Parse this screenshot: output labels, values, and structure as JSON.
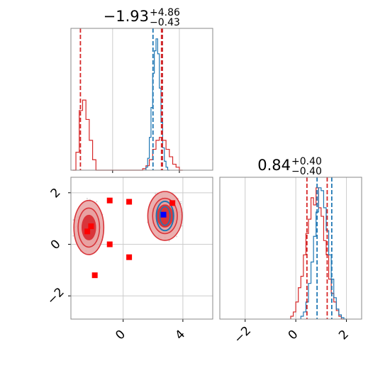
{
  "colors": {
    "red": "#d62728",
    "blue": "#1f77b4",
    "marker_red": "#ff0000",
    "marker_blue": "#0000ff",
    "grid": "#cccccc",
    "frame": "#888888",
    "contour_fill": "#e8a2a2",
    "contour_dark": "#d9353a"
  },
  "chart_data": [
    {
      "panel": "top-left",
      "type": "histogram",
      "title_value": "−1.93",
      "title_plus": "+4.86",
      "title_minus": "−0.43",
      "xlim": [
        -2.5,
        6.0
      ],
      "xticks": [
        0,
        4
      ],
      "show_tick_labels": false,
      "grid": true,
      "series": [
        {
          "color": "red",
          "bins": [
            [
              -2.4,
              -2.2,
              0.0
            ],
            [
              -2.2,
              -2.0,
              0.12
            ],
            [
              -2.0,
              -1.8,
              0.4
            ],
            [
              -1.8,
              -1.6,
              0.47
            ],
            [
              -1.6,
              -1.4,
              0.34
            ],
            [
              -1.4,
              -1.2,
              0.2
            ],
            [
              -1.2,
              -1.0,
              0.07
            ],
            [
              -1.0,
              -0.8,
              0.0
            ],
            [
              1.6,
              1.8,
              0.0
            ],
            [
              1.8,
              2.0,
              0.01
            ],
            [
              2.0,
              2.2,
              0.03
            ],
            [
              2.2,
              2.4,
              0.07
            ],
            [
              2.4,
              2.6,
              0.14
            ],
            [
              2.6,
              2.8,
              0.2
            ],
            [
              2.8,
              3.0,
              0.22
            ],
            [
              3.0,
              3.2,
              0.2
            ],
            [
              3.2,
              3.4,
              0.14
            ],
            [
              3.4,
              3.6,
              0.09
            ],
            [
              3.6,
              3.8,
              0.04
            ],
            [
              3.8,
              4.0,
              0.02
            ],
            [
              4.0,
              4.2,
              0.0
            ]
          ]
        },
        {
          "color": "blue",
          "bins": [
            [
              2.0,
              2.1,
              0.02
            ],
            [
              2.1,
              2.2,
              0.08
            ],
            [
              2.2,
              2.3,
              0.22
            ],
            [
              2.3,
              2.4,
              0.42
            ],
            [
              2.4,
              2.5,
              0.65
            ],
            [
              2.5,
              2.6,
              0.8
            ],
            [
              2.6,
              2.7,
              0.88
            ],
            [
              2.7,
              2.8,
              0.78
            ],
            [
              2.8,
              2.9,
              0.55
            ],
            [
              2.9,
              3.0,
              0.32
            ],
            [
              3.0,
              3.1,
              0.15
            ],
            [
              3.1,
              3.2,
              0.06
            ],
            [
              3.2,
              3.3,
              0.02
            ],
            [
              3.3,
              3.4,
              0.0
            ]
          ]
        }
      ],
      "vlines": [
        {
          "x": -1.93,
          "color": "red"
        },
        {
          "x": 2.42,
          "color": "blue"
        },
        {
          "x": 2.98,
          "color": "blue"
        },
        {
          "x": 2.93,
          "color": "red"
        },
        {
          "x": 2.98,
          "color": "red"
        }
      ]
    },
    {
      "panel": "bottom-left",
      "type": "scatter",
      "xlim": [
        -3.5,
        6.0
      ],
      "ylim": [
        -2.9,
        2.6
      ],
      "xticks": [
        0,
        4
      ],
      "yticks": [
        -2,
        0,
        2
      ],
      "xtick_labels": [
        "0",
        "4"
      ],
      "ytick_labels": [
        "−2",
        "0",
        "2"
      ],
      "grid": true,
      "contours": [
        {
          "cx": -2.3,
          "cy": 0.65,
          "rx": 1.0,
          "ry": 1.05
        },
        {
          "cx": 2.8,
          "cy": 1.1,
          "rx": 1.15,
          "ry": 0.95
        }
      ],
      "red_markers": [
        [
          -0.9,
          1.7
        ],
        [
          0.4,
          1.65
        ],
        [
          3.3,
          1.6
        ],
        [
          -2.4,
          0.5
        ],
        [
          -2.15,
          0.7
        ],
        [
          -0.9,
          0.0
        ],
        [
          0.4,
          -0.5
        ],
        [
          -1.9,
          -1.2
        ]
      ],
      "blue_markers": [
        [
          2.7,
          1.15
        ]
      ]
    },
    {
      "panel": "bottom-right",
      "type": "histogram",
      "title_value": "0.84",
      "title_plus": "+0.40",
      "title_minus": "−0.40",
      "xlim": [
        -3.0,
        2.6
      ],
      "xticks": [
        -2,
        0,
        2
      ],
      "xtick_labels": [
        "−2",
        "0",
        "2"
      ],
      "grid": true,
      "series": [
        {
          "color": "red",
          "bins": [
            [
              -0.2,
              -0.1,
              0.02
            ],
            [
              -0.1,
              0.0,
              0.05
            ],
            [
              0.0,
              0.1,
              0.12
            ],
            [
              0.1,
              0.2,
              0.22
            ],
            [
              0.2,
              0.3,
              0.3
            ],
            [
              0.3,
              0.4,
              0.45
            ],
            [
              0.4,
              0.5,
              0.6
            ],
            [
              0.5,
              0.6,
              0.7
            ],
            [
              0.6,
              0.7,
              0.85
            ],
            [
              0.7,
              0.8,
              0.8
            ],
            [
              0.8,
              0.9,
              0.92
            ],
            [
              0.9,
              1.0,
              0.78
            ],
            [
              1.0,
              1.1,
              0.72
            ],
            [
              1.1,
              1.2,
              0.55
            ],
            [
              1.2,
              1.3,
              0.45
            ],
            [
              1.3,
              1.4,
              0.28
            ],
            [
              1.4,
              1.5,
              0.18
            ],
            [
              1.5,
              1.6,
              0.12
            ],
            [
              1.6,
              1.7,
              0.06
            ],
            [
              1.7,
              1.8,
              0.02
            ],
            [
              1.8,
              1.9,
              0.0
            ]
          ]
        },
        {
          "color": "blue",
          "bins": [
            [
              0.2,
              0.3,
              0.02
            ],
            [
              0.3,
              0.4,
              0.05
            ],
            [
              0.4,
              0.5,
              0.12
            ],
            [
              0.5,
              0.6,
              0.25
            ],
            [
              0.6,
              0.7,
              0.4
            ],
            [
              0.7,
              0.8,
              0.58
            ],
            [
              0.8,
              0.9,
              0.75
            ],
            [
              0.9,
              1.0,
              0.92
            ],
            [
              1.0,
              1.1,
              0.9
            ],
            [
              1.1,
              1.2,
              0.78
            ],
            [
              1.2,
              1.3,
              0.62
            ],
            [
              1.3,
              1.4,
              0.45
            ],
            [
              1.4,
              1.5,
              0.28
            ],
            [
              1.5,
              1.6,
              0.15
            ],
            [
              1.6,
              1.7,
              0.07
            ],
            [
              1.7,
              1.8,
              0.03
            ],
            [
              1.8,
              1.9,
              0.01
            ],
            [
              1.9,
              2.0,
              0.0
            ]
          ]
        }
      ],
      "vlines": [
        {
          "x": 0.44,
          "color": "red"
        },
        {
          "x": 0.84,
          "color": "blue"
        },
        {
          "x": 1.24,
          "color": "red"
        },
        {
          "x": 1.42,
          "color": "blue"
        }
      ]
    }
  ]
}
